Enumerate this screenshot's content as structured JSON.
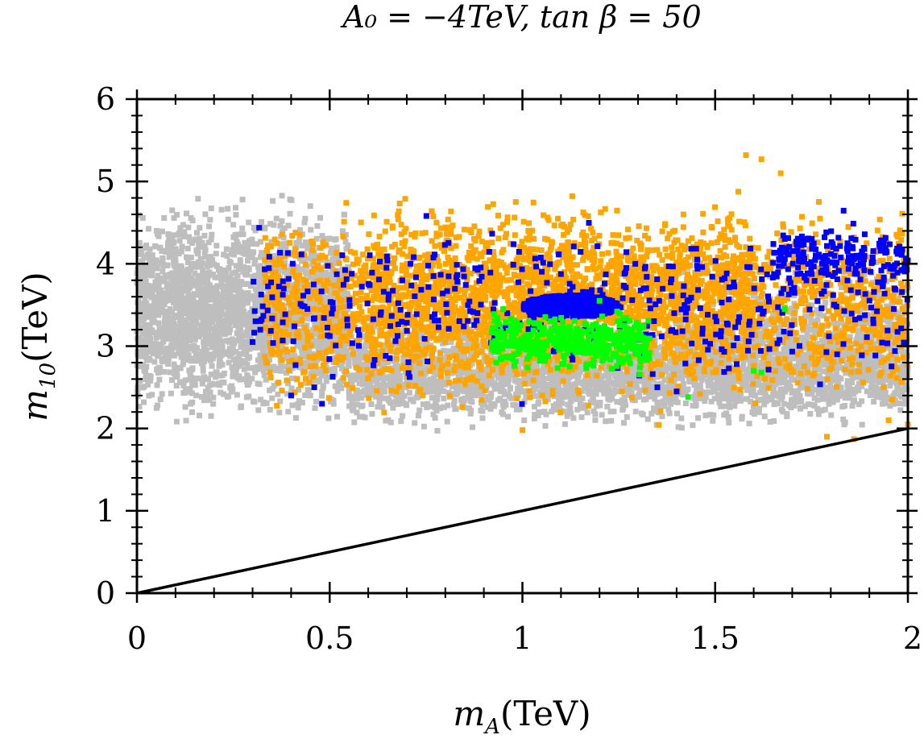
{
  "chart_data": {
    "type": "scatter",
    "title": "A₀ = −4TeV, tan β = 50",
    "xlabel": "m_A(TeV)",
    "ylabel": "m_10(TeV)",
    "xlabel_main": "m",
    "xlabel_sub": "A",
    "xlabel_unit": "(TeV)",
    "ylabel_main": "m",
    "ylabel_sub": "10",
    "ylabel_unit": "(TeV)",
    "xlim": [
      0,
      2
    ],
    "ylim": [
      0,
      6
    ],
    "xticks": [
      0,
      0.5,
      1,
      1.5,
      2
    ],
    "xtick_labels": [
      "0",
      "0.5",
      "1",
      "1.5",
      "2"
    ],
    "yticks": [
      0,
      1,
      2,
      3,
      4,
      5,
      6
    ],
    "ytick_labels": [
      "0",
      "1",
      "2",
      "3",
      "4",
      "5",
      "6"
    ],
    "grid": false,
    "legend": "none",
    "reference_line": {
      "name": "m10 = mA",
      "x": [
        0,
        2
      ],
      "y": [
        0,
        2
      ],
      "color": "#000000"
    },
    "series": [
      {
        "name": "gray",
        "color": "#bebebe",
        "regions": [
          {
            "x": [
              0.0,
              0.55
            ],
            "y": [
              1.7,
              5.1
            ],
            "count": 2600
          },
          {
            "x": [
              0.55,
              2.0
            ],
            "y": [
              1.8,
              3.6
            ],
            "count": 3000
          },
          {
            "x": [
              1.4,
              2.0
            ],
            "y": [
              2.0,
              4.4
            ],
            "count": 600
          }
        ]
      },
      {
        "name": "orange",
        "color": "#ffa500",
        "regions": [
          {
            "x": [
              0.33,
              2.0
            ],
            "y": [
              1.85,
              5.1
            ],
            "count": 2400
          },
          {
            "x": [
              0.6,
              1.6
            ],
            "y": [
              2.2,
              5.1
            ],
            "count": 1200
          }
        ],
        "points": [
          [
            1.58,
            5.32
          ],
          [
            1.62,
            5.27
          ],
          [
            1.67,
            5.1
          ],
          [
            1.86,
            1.87
          ],
          [
            1.79,
            1.9
          ],
          [
            2.0,
            2.05
          ],
          [
            1.95,
            2.1
          ],
          [
            1.0,
            1.98
          ]
        ]
      },
      {
        "name": "blue",
        "color": "#0000ff",
        "regions": [
          {
            "x": [
              0.3,
              2.0
            ],
            "y": [
              2.2,
              4.8
            ],
            "count": 450
          },
          {
            "x": [
              1.65,
              2.0
            ],
            "y": [
              3.6,
              4.6
            ],
            "count": 180
          }
        ],
        "dense_cluster": {
          "x": [
            1.0,
            1.25
          ],
          "y": [
            3.35,
            3.62
          ],
          "count": 700
        },
        "points": [
          [
            0.48,
            2.3
          ],
          [
            0.46,
            2.5
          ],
          [
            0.4,
            2.4
          ],
          [
            0.32,
            3.2
          ],
          [
            0.3,
            3.05
          ],
          [
            1.35,
            2.5
          ],
          [
            1.4,
            2.45
          ]
        ]
      },
      {
        "name": "green",
        "color": "#00ff00",
        "regions": [
          {
            "x": [
              0.92,
              1.33
            ],
            "y": [
              2.6,
              3.5
            ],
            "count": 420
          }
        ],
        "points": [
          [
            1.43,
            2.38
          ],
          [
            1.6,
            2.7
          ],
          [
            1.62,
            2.68
          ],
          [
            1.68,
            3.45
          ],
          [
            0.95,
            3.45
          ],
          [
            1.2,
            3.55
          ]
        ]
      }
    ]
  }
}
